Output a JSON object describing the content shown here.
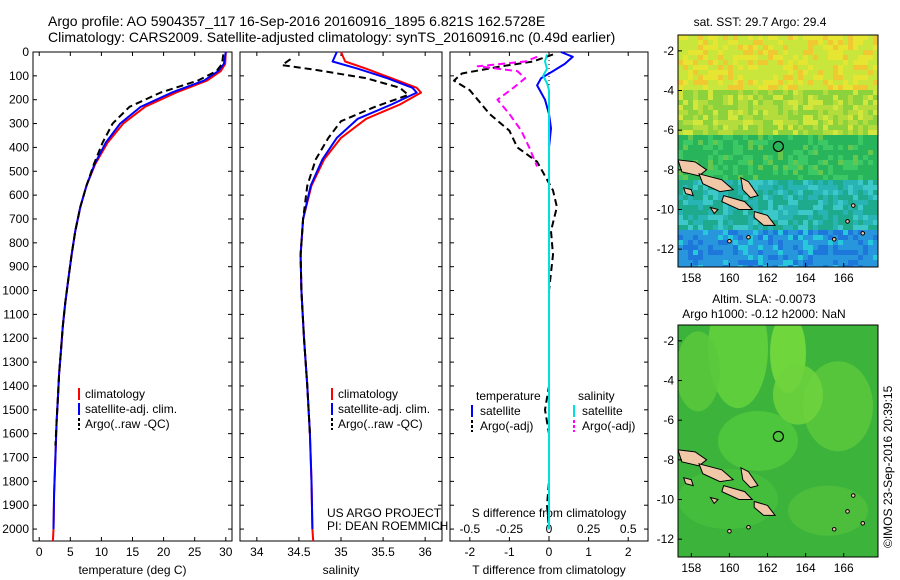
{
  "header": {
    "line1": "Argo profile: AO 5904357_117 16-Sep-2016 20160916_1895 6.821S 162.5728E",
    "line2": "Climatology: CARS2009. Satellite-adjusted climatology: synTS_20160916.nc (0.49d earlier)"
  },
  "colors": {
    "climatology": "#ff0000",
    "satellite": "#0000ff",
    "argo": "#000000",
    "salinity_satellite": "#00e0e0",
    "salinity_argo": "#ff00ff"
  },
  "chart_data": [
    {
      "type": "line",
      "id": "temperature",
      "xlabel": "temperature (deg C)",
      "ylim": [
        0,
        2050
      ],
      "xlim": [
        -1,
        31
      ],
      "xticks": [
        0,
        5,
        10,
        15,
        20,
        25,
        30
      ],
      "yticks": [
        0,
        100,
        200,
        300,
        400,
        500,
        600,
        700,
        800,
        900,
        1000,
        1100,
        1200,
        1300,
        1400,
        1500,
        1600,
        1700,
        1800,
        1900,
        2000
      ],
      "legend": {
        "placement": "lower-left",
        "entries": [
          "climatology",
          "satellite-adj. clim.",
          "Argo(..raw -QC)"
        ]
      },
      "series": [
        {
          "name": "climatology",
          "color": "#ff0000",
          "dash": "",
          "points": [
            [
              30,
              0
            ],
            [
              29.9,
              50
            ],
            [
              29.2,
              80
            ],
            [
              27,
              120
            ],
            [
              22,
              170
            ],
            [
              17,
              230
            ],
            [
              13.5,
              300
            ],
            [
              11,
              380
            ],
            [
              9,
              470
            ],
            [
              7.6,
              560
            ],
            [
              6.6,
              650
            ],
            [
              5.8,
              750
            ],
            [
              5.2,
              850
            ],
            [
              4.7,
              950
            ],
            [
              4.2,
              1050
            ],
            [
              3.8,
              1150
            ],
            [
              3.5,
              1250
            ],
            [
              3.2,
              1350
            ],
            [
              3,
              1450
            ],
            [
              2.8,
              1550
            ],
            [
              2.6,
              1700
            ],
            [
              2.4,
              1850
            ],
            [
              2.3,
              2000
            ],
            [
              2.2,
              2050
            ]
          ]
        },
        {
          "name": "satellite-adj. clim.",
          "color": "#0000ff",
          "dash": "",
          "points": [
            [
              30,
              0
            ],
            [
              29.7,
              50
            ],
            [
              28.8,
              80
            ],
            [
              26.5,
              120
            ],
            [
              21.3,
              170
            ],
            [
              16.3,
              230
            ],
            [
              13,
              300
            ],
            [
              10.7,
              380
            ],
            [
              8.9,
              470
            ],
            [
              7.6,
              560
            ],
            [
              6.6,
              650
            ],
            [
              5.8,
              750
            ],
            [
              5.2,
              850
            ],
            [
              4.7,
              950
            ],
            [
              4.2,
              1050
            ],
            [
              3.8,
              1150
            ],
            [
              3.5,
              1250
            ],
            [
              3.2,
              1350
            ],
            [
              3,
              1450
            ],
            [
              2.8,
              1550
            ],
            [
              2.6,
              1700
            ],
            [
              2.4,
              1850
            ],
            [
              2.3,
              2000
            ]
          ]
        },
        {
          "name": "Argo(..raw -QC)",
          "color": "#000000",
          "dash": "7,4",
          "points": [
            [
              29.6,
              10
            ],
            [
              29.4,
              50
            ],
            [
              28.5,
              80
            ],
            [
              25.5,
              120
            ],
            [
              19.5,
              170
            ],
            [
              14.5,
              230
            ],
            [
              11.8,
              300
            ],
            [
              10.2,
              380
            ],
            [
              8.8,
              470
            ],
            [
              7.6,
              560
            ],
            [
              6.6,
              650
            ],
            [
              5.8,
              750
            ],
            [
              5.2,
              850
            ],
            [
              4.7,
              950
            ],
            [
              4.2,
              1050
            ],
            [
              3.8,
              1150
            ],
            [
              3.5,
              1250
            ],
            [
              3.2,
              1350
            ],
            [
              3,
              1450
            ],
            [
              2.8,
              1550
            ],
            [
              2.6,
              1650
            ]
          ]
        }
      ]
    },
    {
      "type": "line",
      "id": "salinity",
      "xlabel": "salinity",
      "ylim": [
        0,
        2050
      ],
      "xlim": [
        33.8,
        36.2
      ],
      "xticks": [
        34,
        34.5,
        35,
        35.5,
        36
      ],
      "legend": {
        "placement": "lower-right",
        "entries": [
          "climatology",
          "satellite-adj. clim.",
          "Argo(..raw -QC)"
        ]
      },
      "annotations": [
        "US ARGO PROJECT",
        "PI: DEAN ROEMMICH"
      ],
      "series": [
        {
          "name": "climatology",
          "color": "#ff0000",
          "dash": "",
          "points": [
            [
              35.0,
              0
            ],
            [
              35.05,
              40
            ],
            [
              35.3,
              70
            ],
            [
              35.6,
              110
            ],
            [
              35.9,
              150
            ],
            [
              35.95,
              170
            ],
            [
              35.7,
              220
            ],
            [
              35.3,
              280
            ],
            [
              35.0,
              360
            ],
            [
              34.8,
              450
            ],
            [
              34.65,
              560
            ],
            [
              34.55,
              700
            ],
            [
              34.52,
              850
            ],
            [
              34.53,
              1000
            ],
            [
              34.56,
              1200
            ],
            [
              34.6,
              1400
            ],
            [
              34.63,
              1600
            ],
            [
              34.65,
              1800
            ],
            [
              34.66,
              2000
            ],
            [
              34.67,
              2050
            ]
          ]
        },
        {
          "name": "satellite-adj. clim.",
          "color": "#0000ff",
          "dash": "",
          "points": [
            [
              34.95,
              0
            ],
            [
              34.9,
              40
            ],
            [
              35.2,
              70
            ],
            [
              35.55,
              110
            ],
            [
              35.85,
              150
            ],
            [
              35.9,
              170
            ],
            [
              35.6,
              220
            ],
            [
              35.2,
              280
            ],
            [
              34.95,
              360
            ],
            [
              34.78,
              450
            ],
            [
              34.64,
              560
            ],
            [
              34.55,
              700
            ],
            [
              34.52,
              850
            ],
            [
              34.53,
              1000
            ],
            [
              34.56,
              1200
            ],
            [
              34.6,
              1400
            ],
            [
              34.63,
              1600
            ],
            [
              34.65,
              1800
            ],
            [
              34.66,
              2000
            ]
          ]
        },
        {
          "name": "Argo(..raw -QC)",
          "color": "#000000",
          "dash": "7,4",
          "points": [
            [
              34.4,
              30
            ],
            [
              34.3,
              55
            ],
            [
              34.7,
              75
            ],
            [
              35.3,
              110
            ],
            [
              35.7,
              150
            ],
            [
              35.8,
              180
            ],
            [
              35.4,
              230
            ],
            [
              35.0,
              290
            ],
            [
              34.85,
              360
            ],
            [
              34.7,
              450
            ],
            [
              34.6,
              560
            ],
            [
              34.55,
              700
            ],
            [
              34.52,
              850
            ],
            [
              34.53,
              1000
            ],
            [
              34.56,
              1200
            ],
            [
              34.6,
              1400
            ],
            [
              34.63,
              1600
            ]
          ]
        }
      ]
    },
    {
      "type": "line",
      "id": "differences",
      "xlabel": "T difference from climatology",
      "xlabel_top": "S difference from climatology",
      "ylim": [
        0,
        2050
      ],
      "xlim": [
        -2.5,
        2.5
      ],
      "xticks": [
        -2,
        -1,
        0,
        1,
        2
      ],
      "xticks_s": [
        -0.5,
        -0.25,
        0,
        0.25,
        0.5
      ],
      "xticks_s_labels": [
        "-0.5",
        "-0.25",
        "0",
        "0.25",
        "0.5"
      ],
      "legend": {
        "placement": "lower",
        "groups": [
          {
            "title": "temperature",
            "entries": [
              "satellite",
              "Argo(-adj)"
            ]
          },
          {
            "title": "salinity",
            "entries": [
              "satellite",
              "Argo(-adj)"
            ]
          }
        ]
      },
      "series": [
        {
          "name": "temperature satellite",
          "color": "#0000ff",
          "dash": "",
          "points": [
            [
              0.3,
              0
            ],
            [
              0.6,
              20
            ],
            [
              0.4,
              50
            ],
            [
              0.1,
              80
            ],
            [
              -0.2,
              110
            ],
            [
              -0.3,
              140
            ],
            [
              -0.2,
              170
            ],
            [
              -0.1,
              200
            ],
            [
              0,
              260
            ],
            [
              0.05,
              320
            ],
            [
              0,
              400
            ],
            [
              0,
              600
            ],
            [
              0,
              900
            ],
            [
              0,
              1200
            ],
            [
              0,
              1500
            ],
            [
              0,
              1800
            ],
            [
              0,
              2000
            ]
          ]
        },
        {
          "name": "temperature Argo(-adj)",
          "color": "#000000",
          "dash": "7,4",
          "points": [
            [
              0.1,
              10
            ],
            [
              -0.4,
              40
            ],
            [
              -1.2,
              60
            ],
            [
              -2.2,
              90
            ],
            [
              -2.4,
              120
            ],
            [
              -2.0,
              160
            ],
            [
              -1.8,
              200
            ],
            [
              -1.5,
              260
            ],
            [
              -1.0,
              330
            ],
            [
              -0.8,
              400
            ],
            [
              -0.3,
              460
            ],
            [
              -0.1,
              520
            ],
            [
              0.1,
              580
            ],
            [
              0.2,
              650
            ],
            [
              0.05,
              750
            ],
            [
              0.1,
              850
            ],
            [
              0,
              1000
            ],
            [
              0,
              1400
            ],
            [
              -0.1,
              1500
            ],
            [
              0,
              1600
            ],
            [
              0,
              1800
            ],
            [
              -0.05,
              1900
            ],
            [
              0,
              2000
            ]
          ]
        },
        {
          "name": "salinity satellite",
          "color": "#00e0e0",
          "dash": "",
          "points": [
            [
              -0.05,
              10
            ],
            [
              -0.1,
              40
            ],
            [
              -0.05,
              70
            ],
            [
              -0.15,
              100
            ],
            [
              -0.05,
              130
            ],
            [
              0,
              160
            ],
            [
              0,
              200
            ],
            [
              0,
              400
            ],
            [
              0,
              800
            ],
            [
              0,
              1200
            ],
            [
              0,
              1600
            ],
            [
              0,
              2000
            ]
          ]
        },
        {
          "name": "salinity Argo(-adj)",
          "color": "#ff00ff",
          "dash": "7,4",
          "points": [
            [
              -0.3,
              20
            ],
            [
              -0.6,
              40
            ],
            [
              -1.8,
              60
            ],
            [
              -0.8,
              80
            ],
            [
              -0.6,
              110
            ],
            [
              -0.9,
              150
            ],
            [
              -1.3,
              200
            ],
            [
              -1.0,
              260
            ],
            [
              -0.7,
              330
            ],
            [
              -0.5,
              400
            ],
            [
              -0.3,
              480
            ]
          ]
        }
      ]
    },
    {
      "type": "heatmap",
      "id": "sst_map",
      "title": "sat. SST: 29.7 Argo: 29.4",
      "xticks": [
        158,
        160,
        162,
        164,
        166
      ],
      "yticks": [
        -2,
        -4,
        -6,
        -8,
        -10,
        -12
      ],
      "xlim": [
        157.3,
        167.8
      ],
      "ylim": [
        -12.9,
        -1.2
      ],
      "marker": [
        162.57,
        -6.82
      ]
    },
    {
      "type": "heatmap",
      "id": "sla_map",
      "title": "Altim. SLA: -0.0073",
      "subtitle": "Argo h1000: -0.12 h2000: NaN",
      "xticks": [
        158,
        160,
        162,
        164,
        166
      ],
      "yticks": [
        -2,
        -4,
        -6,
        -8,
        -10,
        -12
      ],
      "xlim": [
        157.3,
        167.8
      ],
      "ylim": [
        -12.9,
        -1.2
      ],
      "marker": [
        162.57,
        -6.82
      ]
    }
  ],
  "credit": "©IMOS 23-Sep-2016 20:39:15"
}
